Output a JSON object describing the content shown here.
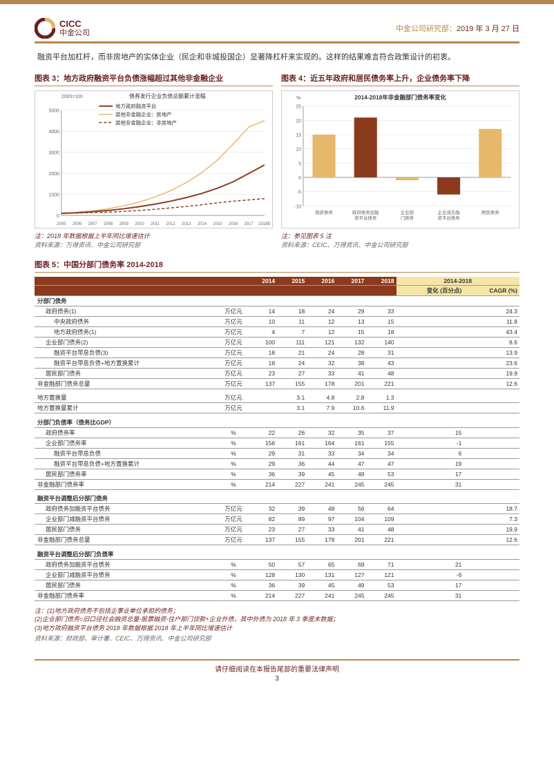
{
  "header": {
    "logo_en": "CICC",
    "logo_cn": "中金公司",
    "dept": "中金公司研究部：",
    "date": "2019 年 3 月 27 日"
  },
  "intro": "融资平台加杠杆，而非房地产的实体企业（民企和非城投国企）显著降杠杆来实现的。这样的结果难言符合政策设计的初衷。",
  "chart3": {
    "title": "图表 3：地方政府融资平台负债涨幅超过其他非金融企业",
    "subtitle": "债券发行企业负债总额累计涨幅",
    "base": "2005=100",
    "legend": [
      "地方政府融资平台",
      "其他非金融企业：房地产",
      "其他非金融企业：非房地产"
    ],
    "colors": [
      "#8b3a1e",
      "#e6b86c",
      "#8b3a1e"
    ],
    "years": [
      "2005",
      "2006",
      "2007",
      "2008",
      "2009",
      "2010",
      "2011",
      "2012",
      "2013",
      "2014",
      "2015",
      "2016",
      "2017",
      "2018E"
    ],
    "ylim": [
      0,
      5000
    ],
    "ytick_step": 1000,
    "series1": [
      100,
      130,
      180,
      240,
      320,
      420,
      540,
      680,
      850,
      1050,
      1300,
      1600,
      2000,
      2400
    ],
    "series2": [
      100,
      150,
      220,
      320,
      460,
      640,
      880,
      1180,
      1560,
      2040,
      2640,
      3400,
      4200,
      4500
    ],
    "series3": [
      100,
      115,
      135,
      160,
      195,
      240,
      295,
      360,
      430,
      510,
      600,
      680,
      740,
      800
    ],
    "note": "注：2018 年数据根据上半年同比增速估计",
    "src": "资料来源：万得资讯、中金公司研究部"
  },
  "chart4": {
    "title": "图表 4：近五年政府和居民债务率上升，企业债务率下降",
    "subtitle": "2014-2018年非金融部门债务率变化",
    "categories": [
      "政府债务",
      "政府债务加融资平台债务",
      "企业部门债务",
      "企业减去融资平台债务",
      "居民债务"
    ],
    "values": [
      15,
      21,
      -1,
      -6,
      17
    ],
    "colors": [
      "#e6b86c",
      "#8b3a1e",
      "#e6b86c",
      "#8b3a1e",
      "#e6b86c"
    ],
    "ylim": [
      -10,
      25
    ],
    "ytick_step": 5,
    "yunit": "%",
    "note": "注：参见图表 5 注",
    "src": "资料来源：CEIC、万得资讯、中金公司研究部"
  },
  "table5": {
    "title": "图表 5：中国分部门债务率 2014-2018",
    "header_period": "2014-2018",
    "col_years": [
      "2014",
      "2015",
      "2016",
      "2017",
      "2018"
    ],
    "col_change": "变化 (百分点)",
    "col_cagr": "CAGR (%)",
    "groups": [
      {
        "name": "分部门债务",
        "rows": [
          {
            "l": "政府债务(1)",
            "i": 1,
            "u": "万亿元",
            "v": [
              14,
              18,
              24,
              29,
              33
            ],
            "chg": "",
            "cagr": "24.3"
          },
          {
            "l": "中央政府债务",
            "i": 2,
            "u": "万亿元",
            "v": [
              10,
              11,
              12,
              13,
              15
            ],
            "chg": "",
            "cagr": "11.8"
          },
          {
            "l": "地方政府债务(1)",
            "i": 2,
            "u": "万亿元",
            "v": [
              4,
              7,
              12,
              15,
              18
            ],
            "chg": "",
            "cagr": "43.4"
          },
          {
            "l": "企业部门债务(2)",
            "i": 1,
            "u": "万亿元",
            "v": [
              100,
              111,
              121,
              132,
              140
            ],
            "chg": "",
            "cagr": "8.6"
          },
          {
            "l": "融资平台带息负债(3)",
            "i": 2,
            "u": "万亿元",
            "v": [
              18,
              21,
              24,
              28,
              31
            ],
            "chg": "",
            "cagr": "13.9"
          },
          {
            "l": "融资平台带息负债+地方置换累计",
            "i": 2,
            "u": "万亿元",
            "v": [
              18,
              24,
              32,
              38,
              43
            ],
            "chg": "",
            "cagr": "23.6"
          },
          {
            "l": "居民部门债务",
            "i": 1,
            "u": "万亿元",
            "v": [
              23,
              27,
              33,
              41,
              48
            ],
            "chg": "",
            "cagr": "19.9"
          },
          {
            "l": "非金融部门债务总量",
            "i": 0,
            "u": "万亿元",
            "v": [
              137,
              155,
              178,
              201,
              221
            ],
            "chg": "",
            "cagr": "12.6"
          }
        ]
      },
      {
        "name": "",
        "rows": [
          {
            "l": "地方置换量",
            "i": 0,
            "u": "万亿元",
            "v": [
              "",
              "3.1",
              "4.8",
              "2.8",
              "1.3"
            ],
            "chg": "",
            "cagr": ""
          },
          {
            "l": "地方置换量累计",
            "i": 0,
            "u": "万亿元",
            "v": [
              "",
              "3.1",
              "7.9",
              "10.6",
              "11.9"
            ],
            "chg": "",
            "cagr": ""
          }
        ]
      },
      {
        "name": "分部门负债率（债务比GDP）",
        "rows": [
          {
            "l": "政府债务率",
            "i": 1,
            "u": "%",
            "v": [
              22,
              26,
              32,
              35,
              37
            ],
            "chg": "15",
            "cagr": ""
          },
          {
            "l": "企业部门债务率",
            "i": 1,
            "u": "%",
            "v": [
              156,
              161,
              164,
              161,
              155
            ],
            "chg": "-1",
            "cagr": ""
          },
          {
            "l": "融资平台带息负债",
            "i": 2,
            "u": "%",
            "v": [
              29,
              31,
              33,
              34,
              34
            ],
            "chg": "6",
            "cagr": ""
          },
          {
            "l": "融资平台带息负债+地方置换累计",
            "i": 2,
            "u": "%",
            "v": [
              29,
              36,
              44,
              47,
              47
            ],
            "chg": "19",
            "cagr": ""
          },
          {
            "l": "居民部门债务率",
            "i": 1,
            "u": "%",
            "v": [
              36,
              39,
              45,
              49,
              53
            ],
            "chg": "17",
            "cagr": ""
          },
          {
            "l": "非金融部门债务率",
            "i": 0,
            "u": "%",
            "v": [
              214,
              227,
              241,
              245,
              245
            ],
            "chg": "31",
            "cagr": ""
          }
        ]
      },
      {
        "name": "融资平台调整后分部门债务",
        "rows": [
          {
            "l": "政府债务加融资平台债务",
            "i": 1,
            "u": "万亿元",
            "v": [
              32,
              39,
              48,
              56,
              64
            ],
            "chg": "",
            "cagr": "18.7"
          },
          {
            "l": "企业部门减融资平台债务",
            "i": 1,
            "u": "万亿元",
            "v": [
              82,
              89,
              97,
              104,
              109
            ],
            "chg": "",
            "cagr": "7.3"
          },
          {
            "l": "居民部门债务",
            "i": 1,
            "u": "万亿元",
            "v": [
              23,
              27,
              33,
              41,
              48
            ],
            "chg": "",
            "cagr": "19.9"
          },
          {
            "l": "非金融部门债务总量",
            "i": 0,
            "u": "万亿元",
            "v": [
              137,
              155,
              178,
              201,
              221
            ],
            "chg": "",
            "cagr": "12.6"
          }
        ]
      },
      {
        "name": "融资平台调整后分部门负债率",
        "rows": [
          {
            "l": "政府债务加融资平台债务",
            "i": 1,
            "u": "%",
            "v": [
              50,
              57,
              65,
              69,
              71
            ],
            "chg": "21",
            "cagr": ""
          },
          {
            "l": "企业部门减融资平台债务",
            "i": 1,
            "u": "%",
            "v": [
              128,
              130,
              131,
              127,
              121
            ],
            "chg": "-6",
            "cagr": ""
          },
          {
            "l": "居民部门债务",
            "i": 1,
            "u": "%",
            "v": [
              36,
              39,
              45,
              49,
              53
            ],
            "chg": "17",
            "cagr": ""
          },
          {
            "l": "非金融部门债务率",
            "i": 0,
            "u": "%",
            "v": [
              214,
              227,
              241,
              245,
              245
            ],
            "chg": "31",
            "cagr": ""
          }
        ]
      }
    ],
    "notes": [
      "注：(1)地方政府债务不包括企事业单位承担的债务；",
      "(2)企业部门债务=旧口径社会融资总量-股票融资-住户部门贷款+企业外债，其中外债为 2018 年 3 季度末数据；",
      "(3)地方政府融资平台债务 2018 年数据根据 2018 年上半年同比增速估计"
    ],
    "src": "资料来源：财政部、审计署、CEIC、万得资讯、中金公司研究部"
  },
  "footer": {
    "disclaimer": "请仔细阅读在本报告尾部的重要法律声明",
    "page": "3"
  }
}
